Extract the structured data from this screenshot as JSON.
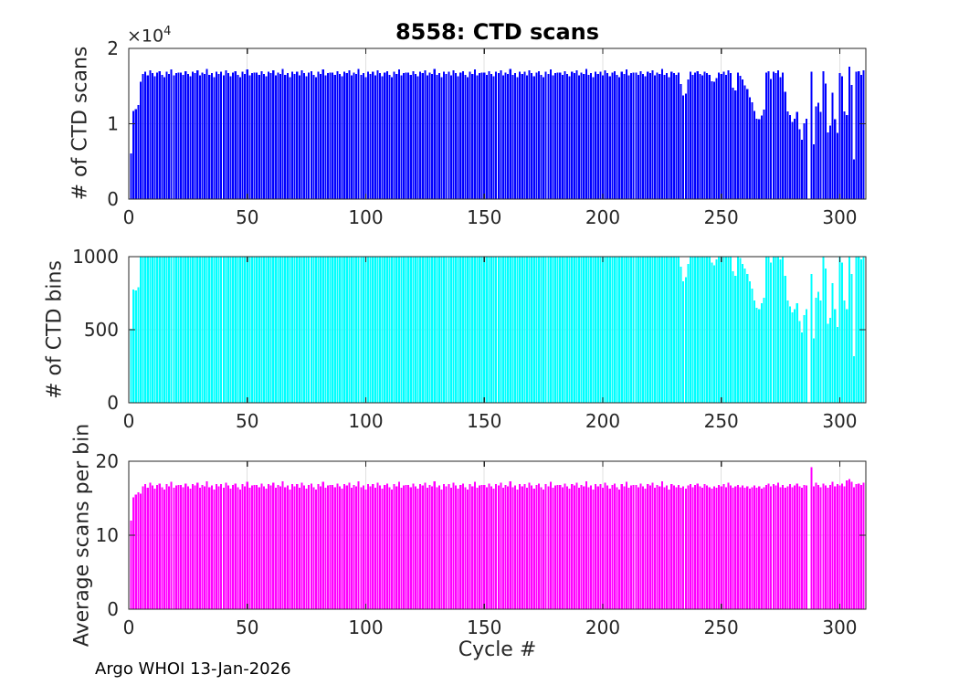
{
  "figure": {
    "title": "8558: CTD scans",
    "xlabel": "Cycle #",
    "footer": "Argo WHOI 13-Jan-2026",
    "exponent_base": "×10",
    "exponent_power": "4",
    "background": "#ffffff",
    "axis_color": "#262626",
    "grid_color": "#e0e0e0"
  },
  "x_axis": {
    "xlim": [
      0,
      311
    ],
    "ticks": [
      0,
      50,
      100,
      150,
      200,
      250,
      300
    ],
    "cycle_start": 1
  },
  "chart_data": [
    {
      "type": "bar",
      "title": "8558: CTD scans",
      "ylabel": "# of CTD scans",
      "color": "#0000ff",
      "ylim": [
        0,
        20000
      ],
      "yticks": [
        0,
        10000,
        20000
      ],
      "ytick_labels": [
        "0",
        "1",
        "2"
      ],
      "y_exponent": "×10^4",
      "grid": true,
      "values": [
        6060,
        11700,
        11940,
        12480,
        15600,
        16600,
        16900,
        16400,
        17100,
        16700,
        16300,
        16800,
        17000,
        16500,
        16200,
        16900,
        16600,
        17200,
        16400,
        16700,
        16800,
        16800,
        16500,
        17000,
        16600,
        16300,
        16900,
        16700,
        17100,
        16400,
        16800,
        16600,
        17300,
        16500,
        16700,
        16200,
        16900,
        16600,
        16900,
        16400,
        17100,
        16700,
        16300,
        16800,
        17000,
        16500,
        16200,
        16900,
        16600,
        17200,
        16400,
        16700,
        16800,
        16800,
        16500,
        17000,
        16600,
        16300,
        16900,
        16700,
        17100,
        16400,
        16800,
        16600,
        17300,
        16500,
        16700,
        16200,
        16900,
        16600,
        16900,
        16400,
        17100,
        16700,
        16300,
        16800,
        17000,
        16500,
        16200,
        16900,
        16600,
        17200,
        16400,
        16700,
        16800,
        16800,
        16500,
        17000,
        16600,
        16300,
        16900,
        16700,
        17100,
        16400,
        16800,
        16600,
        17300,
        16500,
        16700,
        16200,
        16900,
        16600,
        16900,
        16400,
        17100,
        16700,
        16300,
        16800,
        17000,
        16500,
        16200,
        16900,
        16600,
        17200,
        16400,
        16700,
        16800,
        16800,
        16500,
        17000,
        16600,
        16300,
        16900,
        16700,
        17100,
        16400,
        16800,
        16600,
        17300,
        16500,
        16700,
        16200,
        16900,
        16600,
        16900,
        16400,
        17100,
        16700,
        16300,
        16800,
        17000,
        16500,
        16200,
        16900,
        16600,
        17200,
        16400,
        16700,
        16800,
        16800,
        16500,
        17000,
        16600,
        16300,
        16900,
        16700,
        17100,
        16400,
        16800,
        16600,
        17300,
        16500,
        16700,
        16200,
        16900,
        16600,
        16900,
        16400,
        17100,
        16700,
        16300,
        16800,
        17000,
        16500,
        16200,
        16900,
        16600,
        17200,
        16400,
        16700,
        16800,
        16800,
        16500,
        17000,
        16600,
        16300,
        16900,
        16700,
        17100,
        16400,
        16800,
        16600,
        17300,
        16500,
        16700,
        16200,
        16900,
        16600,
        16900,
        16400,
        17100,
        16700,
        16300,
        16800,
        17000,
        16500,
        16200,
        16900,
        16600,
        17200,
        16400,
        16700,
        16800,
        16800,
        16500,
        17000,
        16600,
        16300,
        16900,
        16700,
        17100,
        16400,
        16800,
        16600,
        17300,
        16500,
        16700,
        16200,
        16900,
        16700,
        16500,
        16800,
        15250,
        13780,
        14020,
        15870,
        16900,
        16500,
        16800,
        17000,
        16600,
        16400,
        16900,
        16700,
        16500,
        15650,
        15600,
        16070,
        16800,
        16600,
        16900,
        16500,
        17100,
        16700,
        14760,
        14440,
        16800,
        16340,
        15870,
        15090,
        14610,
        13530,
        12870,
        11690,
        10660,
        10620,
        11080,
        11880,
        16800,
        17000,
        15940,
        16900,
        16700,
        17100,
        16170,
        16800,
        14270,
        11620,
        11150,
        10230,
        10690,
        11560,
        9300,
        7870,
        10080,
        10690,
        0,
        16900,
        7300,
        12310,
        12770,
        11550,
        17000,
        15360,
        8860,
        9740,
        14100,
        10620,
        8790,
        16700,
        16320,
        11620,
        11140,
        17600,
        15140,
        5280,
        16900,
        17000,
        16460,
        17100
      ]
    },
    {
      "type": "bar",
      "ylabel": "# of CTD bins",
      "color": "#00ffff",
      "ylim": [
        0,
        1000
      ],
      "yticks": [
        0,
        500,
        1000
      ],
      "ytick_labels": [
        "0",
        "500",
        "1000"
      ],
      "grid": true,
      "values": [
        505,
        775,
        770,
        790,
        1000,
        1000,
        1000,
        1000,
        1000,
        1000,
        1000,
        1000,
        1000,
        1000,
        1000,
        1000,
        1000,
        1000,
        1000,
        1000,
        1000,
        1000,
        1000,
        1000,
        1000,
        1000,
        1000,
        1000,
        1000,
        1000,
        1000,
        1000,
        1000,
        1000,
        1000,
        1000,
        1000,
        1000,
        1000,
        1000,
        1000,
        1000,
        1000,
        1000,
        1000,
        1000,
        1000,
        1000,
        1000,
        1000,
        1000,
        1000,
        1000,
        1000,
        1000,
        1000,
        1000,
        1000,
        1000,
        1000,
        1000,
        1000,
        1000,
        1000,
        1000,
        1000,
        1000,
        1000,
        1000,
        1000,
        1000,
        1000,
        1000,
        1000,
        1000,
        1000,
        1000,
        1000,
        1000,
        1000,
        1000,
        1000,
        1000,
        1000,
        1000,
        1000,
        1000,
        1000,
        1000,
        1000,
        1000,
        1000,
        1000,
        1000,
        1000,
        1000,
        1000,
        1000,
        1000,
        1000,
        1000,
        1000,
        1000,
        1000,
        1000,
        1000,
        1000,
        1000,
        1000,
        1000,
        1000,
        1000,
        1000,
        1000,
        1000,
        1000,
        1000,
        1000,
        1000,
        1000,
        1000,
        1000,
        1000,
        1000,
        1000,
        1000,
        1000,
        1000,
        1000,
        1000,
        1000,
        1000,
        1000,
        1000,
        1000,
        1000,
        1000,
        1000,
        1000,
        1000,
        1000,
        1000,
        1000,
        1000,
        1000,
        1000,
        1000,
        1000,
        1000,
        1000,
        1000,
        1000,
        1000,
        1000,
        1000,
        1000,
        1000,
        1000,
        1000,
        1000,
        1000,
        1000,
        1000,
        1000,
        1000,
        1000,
        1000,
        1000,
        1000,
        1000,
        1000,
        1000,
        1000,
        1000,
        1000,
        1000,
        1000,
        1000,
        1000,
        1000,
        1000,
        1000,
        1000,
        1000,
        1000,
        1000,
        1000,
        1000,
        1000,
        1000,
        1000,
        1000,
        1000,
        1000,
        1000,
        1000,
        1000,
        1000,
        1000,
        1000,
        1000,
        1000,
        1000,
        1000,
        1000,
        1000,
        1000,
        1000,
        1000,
        1000,
        1000,
        1000,
        1000,
        1000,
        1000,
        1000,
        1000,
        1000,
        1000,
        1000,
        1000,
        1000,
        1000,
        1000,
        1000,
        1000,
        1000,
        1000,
        1000,
        1000,
        1000,
        1000,
        930,
        830,
        860,
        950,
        1000,
        1000,
        1000,
        1000,
        1000,
        1000,
        1000,
        1000,
        1000,
        960,
        940,
        980,
        1000,
        1000,
        1000,
        1000,
        1000,
        1000,
        900,
        870,
        1000,
        990,
        950,
        920,
        880,
        830,
        780,
        700,
        650,
        640,
        680,
        720,
        1000,
        1000,
        960,
        1000,
        1000,
        1000,
        980,
        1000,
        870,
        700,
        660,
        620,
        640,
        680,
        560,
        480,
        600,
        640,
        0,
        880,
        440,
        720,
        760,
        700,
        1000,
        920,
        540,
        580,
        820,
        640,
        520,
        1000,
        960,
        700,
        640,
        1000,
        880,
        320,
        1000,
        1000,
        980,
        1000
      ]
    },
    {
      "type": "bar",
      "ylabel": "Average scans per bin",
      "xlabel": "Cycle #",
      "color": "#ff00ff",
      "ylim": [
        0,
        20
      ],
      "yticks": [
        0,
        10,
        20
      ],
      "ytick_labels": [
        "0",
        "10",
        "20"
      ],
      "grid": true,
      "values": [
        12,
        15.1,
        15.5,
        15.8,
        15.6,
        16.6,
        16.9,
        16.4,
        17.1,
        16.7,
        16.3,
        16.8,
        17,
        16.5,
        16.2,
        16.9,
        16.6,
        17.2,
        16.4,
        16.7,
        16.8,
        16.8,
        16.5,
        17,
        16.6,
        16.3,
        16.9,
        16.7,
        17.1,
        16.4,
        16.8,
        16.6,
        17.3,
        16.5,
        16.7,
        16.2,
        16.9,
        16.6,
        16.9,
        16.4,
        17.1,
        16.7,
        16.3,
        16.8,
        17,
        16.5,
        16.2,
        16.9,
        16.6,
        17.2,
        16.4,
        16.7,
        16.8,
        16.8,
        16.5,
        17,
        16.6,
        16.3,
        16.9,
        16.7,
        17.1,
        16.4,
        16.8,
        16.6,
        17.3,
        16.5,
        16.7,
        16.2,
        16.9,
        16.6,
        16.9,
        16.4,
        17.1,
        16.7,
        16.3,
        16.8,
        17,
        16.5,
        16.2,
        16.9,
        16.6,
        17.2,
        16.4,
        16.7,
        16.8,
        16.8,
        16.5,
        17,
        16.6,
        16.3,
        16.9,
        16.7,
        17.1,
        16.4,
        16.8,
        16.6,
        17.3,
        16.5,
        16.7,
        16.2,
        16.9,
        16.6,
        16.9,
        16.4,
        17.1,
        16.7,
        16.3,
        16.8,
        17,
        16.5,
        16.2,
        16.9,
        16.6,
        17.2,
        16.4,
        16.7,
        16.8,
        16.8,
        16.5,
        17,
        16.6,
        16.3,
        16.9,
        16.7,
        17.1,
        16.4,
        16.8,
        16.6,
        17.3,
        16.5,
        16.7,
        16.2,
        16.9,
        16.6,
        16.9,
        16.4,
        17.1,
        16.7,
        16.3,
        16.8,
        17,
        16.5,
        16.2,
        16.9,
        16.6,
        17.2,
        16.4,
        16.7,
        16.8,
        16.8,
        16.5,
        17,
        16.6,
        16.3,
        16.9,
        16.7,
        17.1,
        16.4,
        16.8,
        16.6,
        17.3,
        16.5,
        16.7,
        16.2,
        16.9,
        16.6,
        16.9,
        16.4,
        17.1,
        16.7,
        16.3,
        16.8,
        17,
        16.5,
        16.2,
        16.9,
        16.6,
        17.2,
        16.4,
        16.7,
        16.8,
        16.8,
        16.5,
        17,
        16.6,
        16.3,
        16.9,
        16.7,
        17.1,
        16.4,
        16.8,
        16.6,
        17.3,
        16.5,
        16.7,
        16.2,
        16.9,
        16.6,
        16.9,
        16.4,
        17.1,
        16.7,
        16.3,
        16.8,
        17,
        16.5,
        16.2,
        16.9,
        16.6,
        17.2,
        16.4,
        16.7,
        16.8,
        16.8,
        16.5,
        17,
        16.6,
        16.3,
        16.9,
        16.7,
        17.1,
        16.4,
        16.8,
        16.6,
        17.3,
        16.5,
        16.7,
        16.2,
        16.9,
        16.7,
        16.5,
        16.8,
        16.4,
        16.6,
        16.3,
        16.7,
        16.9,
        16.5,
        16.8,
        17,
        16.6,
        16.4,
        16.9,
        16.7,
        16.5,
        16.3,
        16.6,
        16.4,
        16.8,
        16.6,
        16.9,
        16.5,
        17.1,
        16.7,
        16.4,
        16.6,
        16.8,
        16.5,
        16.7,
        16.4,
        16.6,
        16.3,
        16.5,
        16.7,
        16.4,
        16.6,
        16.3,
        16.5,
        16.8,
        17,
        16.6,
        16.9,
        16.7,
        17.1,
        16.5,
        16.8,
        16.4,
        16.6,
        16.9,
        16.5,
        16.7,
        17,
        16.6,
        16.4,
        16.8,
        16.7,
        0,
        19.2,
        16.6,
        17.1,
        16.8,
        16.5,
        17,
        16.7,
        16.4,
        16.8,
        17.2,
        16.6,
        16.9,
        16.7,
        17,
        16.6,
        17.4,
        17.6,
        17.2,
        16.5,
        16.9,
        17,
        16.8,
        17.1
      ]
    }
  ]
}
